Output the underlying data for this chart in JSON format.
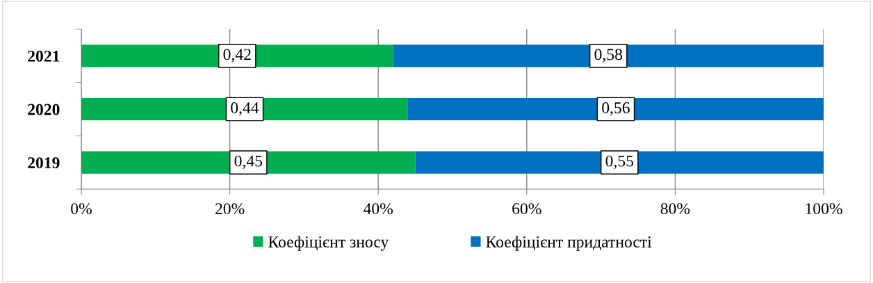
{
  "chart_data": {
    "type": "bar",
    "orientation": "horizontal",
    "stacked": true,
    "categories": [
      "2021",
      "2020",
      "2019"
    ],
    "series": [
      {
        "name": "Коефіцієнт зносу",
        "color": "#00b050",
        "values": [
          0.42,
          0.44,
          0.45
        ],
        "value_labels": [
          "0,42",
          "0,44",
          "0,45"
        ]
      },
      {
        "name": "Коефіцієнт придатності",
        "color": "#0070c0",
        "values": [
          0.58,
          0.56,
          0.55
        ],
        "value_labels": [
          "0,58",
          "0,56",
          "0,55"
        ]
      }
    ],
    "xlim": [
      0,
      1
    ],
    "xticks": [
      {
        "value": 0,
        "label": "0%"
      },
      {
        "value": 0.2,
        "label": "20%"
      },
      {
        "value": 0.4,
        "label": "40%"
      },
      {
        "value": 0.6,
        "label": "60%"
      },
      {
        "value": 0.8,
        "label": "80%"
      },
      {
        "value": 1,
        "label": "100%"
      }
    ],
    "grid": "x",
    "legend": "bottom"
  }
}
